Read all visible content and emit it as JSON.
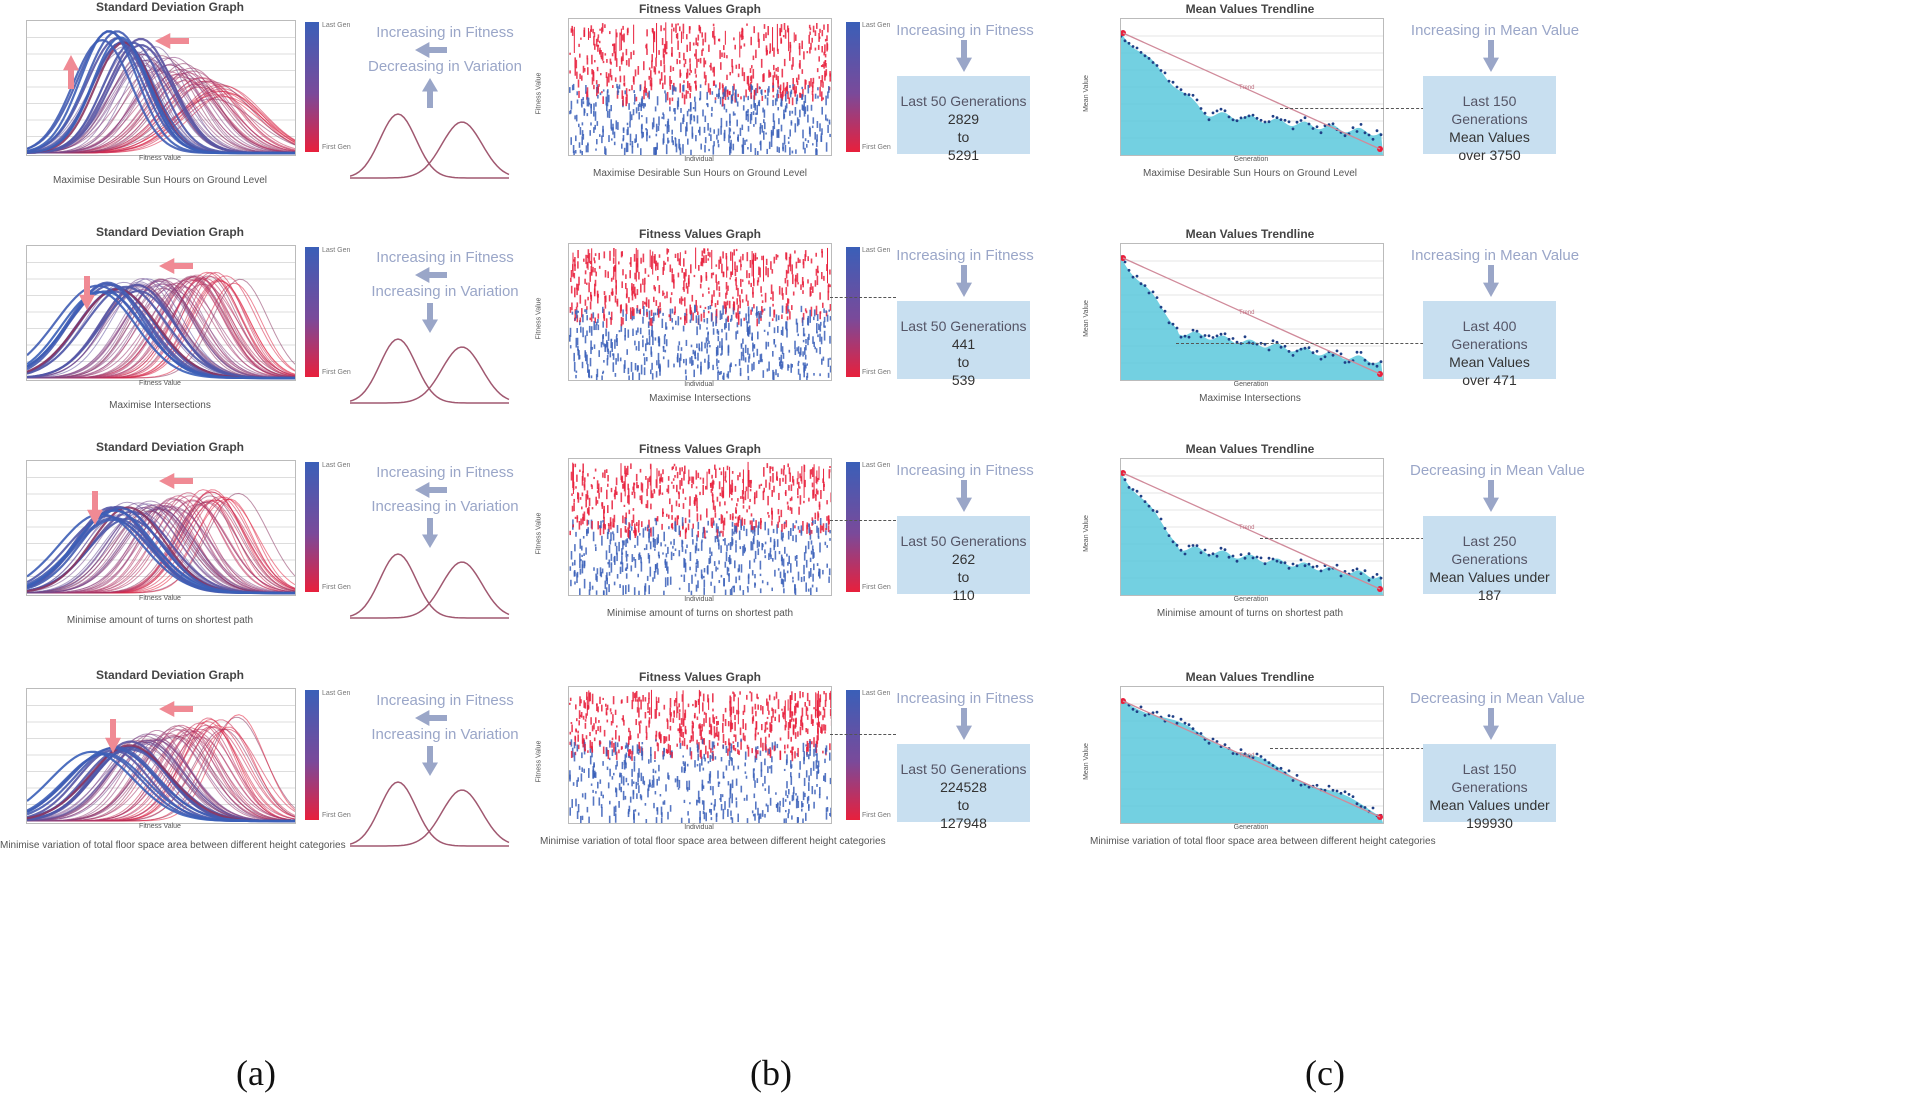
{
  "chart_data": [
    {
      "type": "line",
      "panel": "a",
      "row": 0,
      "title": "Standard Deviation Graph",
      "xlabel": "Fitness Value",
      "caption": "Maximise Desirable Sun Hours on Ground Level",
      "colorbar": {
        "top": "Last Gen",
        "bottom": "First Gen"
      }
    },
    {
      "type": "scatter",
      "panel": "b",
      "row": 0,
      "title": "Fitness Values Graph",
      "xlabel": "Individual",
      "ylabel": "Fitness Value",
      "xlim": [
        0,
        50
      ],
      "caption": "Maximise Desirable Sun Hours on Ground Level",
      "colorbar": {
        "top": "Last Gen",
        "bottom": "First Gen"
      }
    },
    {
      "type": "area",
      "panel": "c",
      "row": 0,
      "title": "Mean Values Trendline",
      "xlabel": "Generation",
      "ylabel": "Mean Value",
      "xlim": [
        0,
        500
      ],
      "trend_label": "Trend",
      "caption": "Maximise Desirable Sun Hours on Ground Level"
    },
    {
      "type": "line",
      "panel": "a",
      "row": 1,
      "title": "Standard Deviation Graph",
      "xlabel": "Fitness Value",
      "caption": "Maximise Intersections",
      "colorbar": {
        "top": "Last Gen",
        "bottom": "First Gen"
      }
    },
    {
      "type": "scatter",
      "panel": "b",
      "row": 1,
      "title": "Fitness Values Graph",
      "xlabel": "Individual",
      "ylabel": "Fitness Value",
      "xlim": [
        0,
        50
      ],
      "caption": "Maximise Intersections",
      "colorbar": {
        "top": "Last Gen",
        "bottom": "First Gen"
      }
    },
    {
      "type": "area",
      "panel": "c",
      "row": 1,
      "title": "Mean Values Trendline",
      "xlabel": "Generation",
      "ylabel": "Mean Value",
      "xlim": [
        0,
        500
      ],
      "trend_label": "Trend",
      "caption": "Maximise Intersections"
    },
    {
      "type": "line",
      "panel": "a",
      "row": 2,
      "title": "Standard Deviation Graph",
      "xlabel": "Fitness Value",
      "caption": "Minimise amount of turns on shortest path",
      "colorbar": {
        "top": "Last Gen",
        "bottom": "First Gen"
      }
    },
    {
      "type": "scatter",
      "panel": "b",
      "row": 2,
      "title": "Fitness Values Graph",
      "xlabel": "Individual",
      "ylabel": "Fitness Value",
      "xlim": [
        0,
        50
      ],
      "caption": "Minimise amount of turns on shortest path",
      "colorbar": {
        "top": "Last Gen",
        "bottom": "First Gen"
      }
    },
    {
      "type": "area",
      "panel": "c",
      "row": 2,
      "title": "Mean Values Trendline",
      "xlabel": "Generation",
      "ylabel": "Mean Value",
      "xlim": [
        0,
        500
      ],
      "trend_label": "Trend",
      "caption": "Minimise amount of turns on shortest path"
    },
    {
      "type": "line",
      "panel": "a",
      "row": 3,
      "title": "Standard Deviation Graph",
      "xlabel": "Fitness Value",
      "caption": "Minimise variation of total floor space area between different height categories",
      "colorbar": {
        "top": "Last Gen",
        "bottom": "First Gen"
      }
    },
    {
      "type": "scatter",
      "panel": "b",
      "row": 3,
      "title": "Fitness Values Graph",
      "xlabel": "Individual",
      "ylabel": "Fitness Value",
      "xlim": [
        0,
        50
      ],
      "caption": "Minimise variation of total floor space area between different height categories",
      "colorbar": {
        "top": "Last Gen",
        "bottom": "First Gen"
      }
    },
    {
      "type": "area",
      "panel": "c",
      "row": 3,
      "title": "Mean Values Trendline",
      "xlabel": "Generation",
      "ylabel": "Mean Value",
      "xlim": [
        0,
        500
      ],
      "trend_label": "Trend",
      "caption": "Minimise variation of total floor space area between different height categories"
    }
  ],
  "rows": [
    {
      "a_annot": [
        "Increasing in Fitness",
        "Decreasing in Variation"
      ],
      "b_annot": "Increasing in Fitness",
      "b_box": [
        "Last 50 Generations",
        "2829",
        "to",
        "5291"
      ],
      "c_annot": "Increasing in Mean Value",
      "c_box": [
        "Last 150 Generations",
        "Mean Values",
        "over 3750"
      ]
    },
    {
      "a_annot": [
        "Increasing in Fitness",
        "Increasing in Variation"
      ],
      "b_annot": "Increasing in Fitness",
      "b_box": [
        "Last 50 Generations",
        "441",
        "to",
        "539"
      ],
      "c_annot": "Increasing in Mean Value",
      "c_box": [
        "Last 400 Generations",
        "Mean Values",
        "over 471"
      ]
    },
    {
      "a_annot": [
        "Increasing in Fitness",
        "Increasing in Variation"
      ],
      "b_annot": "Increasing in Fitness",
      "b_box": [
        "Last 50 Generations",
        "262",
        "to",
        "110"
      ],
      "c_annot": "Decreasing in Mean Value",
      "c_box": [
        "Last 250 Generations",
        "Mean Values under",
        "187"
      ]
    },
    {
      "a_annot": [
        "Increasing in Fitness",
        "Increasing in Variation"
      ],
      "b_annot": "Increasing in Fitness",
      "b_box": [
        "Last 50 Generations",
        "224528",
        "to",
        "127948"
      ],
      "c_annot": "Decreasing in Mean Value",
      "c_box": [
        "Last 150 Generations",
        "Mean Values under",
        "199930"
      ]
    }
  ],
  "panel_labels": [
    "(a)",
    "(b)",
    "(c)"
  ],
  "colors": {
    "blue": "#3a5fb8",
    "red": "#e8203c",
    "purple": "#8a3560",
    "cyan": "#5bc8dc",
    "arrow_pink": "#f08a94",
    "arrow_grey": "#9aa6c8",
    "box": "#c8dff0"
  }
}
